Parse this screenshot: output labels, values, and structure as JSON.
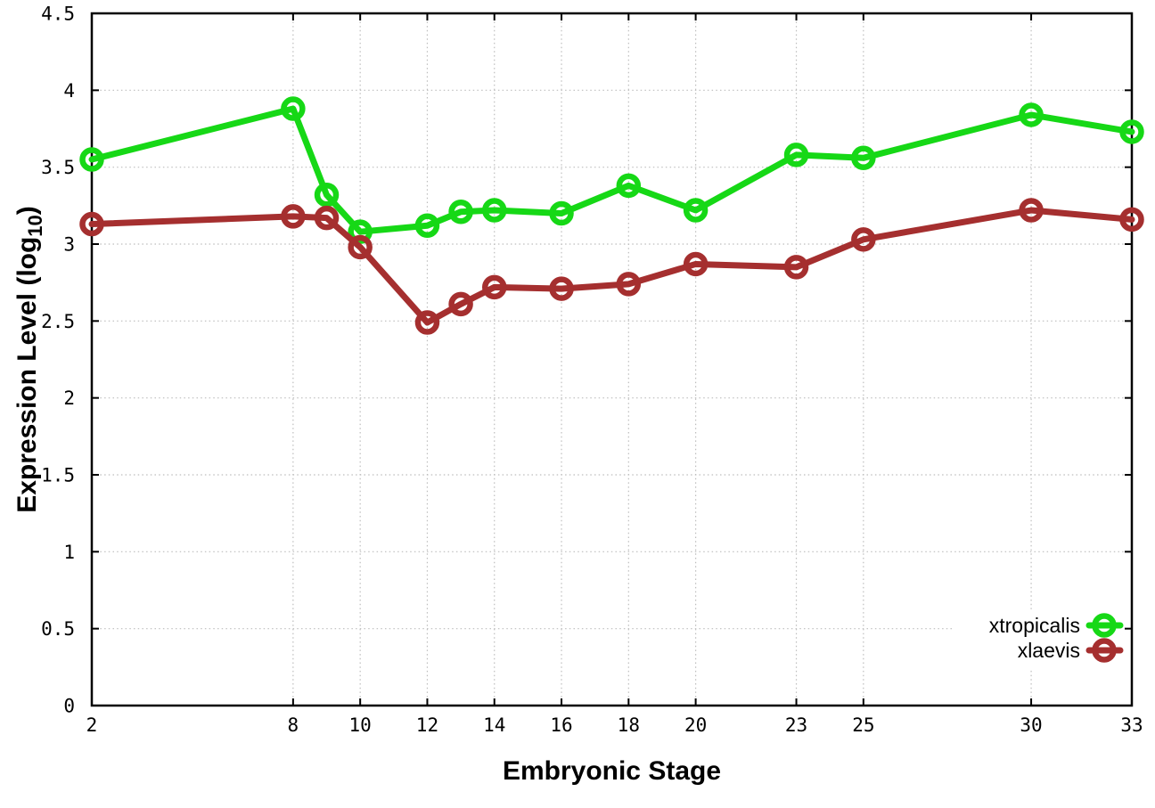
{
  "chart_data": {
    "type": "line",
    "title": "",
    "xlabel": "Embryonic Stage",
    "ylabel": {
      "prefix": "Expression Level (log",
      "subscript": "10",
      "suffix": ")"
    },
    "xlim": [
      2,
      33
    ],
    "ylim": [
      0,
      4.5
    ],
    "grid": true,
    "x_ticks": [
      2,
      8,
      10,
      12,
      14,
      16,
      18,
      20,
      23,
      25,
      30,
      33
    ],
    "x_tick_labels": [
      "2",
      "8",
      "10",
      "12",
      "14",
      "16",
      "18",
      "20",
      "23",
      "25",
      "30",
      "33"
    ],
    "y_ticks": [
      0,
      0.5,
      1,
      1.5,
      2,
      2.5,
      3,
      3.5,
      4,
      4.5
    ],
    "y_tick_labels": [
      "0",
      "0.5",
      "1",
      "1.5",
      "2",
      "2.5",
      "3",
      "3.5",
      "4",
      "4.5"
    ],
    "x": [
      2,
      8,
      9,
      10,
      12,
      13,
      14,
      16,
      18,
      20,
      23,
      25,
      30,
      33
    ],
    "series": [
      {
        "name": "xtropicalis",
        "color": "#16d816",
        "marker": "open-circle",
        "values": [
          3.55,
          3.88,
          3.32,
          3.08,
          3.12,
          3.21,
          3.22,
          3.2,
          3.38,
          3.22,
          3.58,
          3.56,
          3.84,
          3.73
        ]
      },
      {
        "name": "xlaevis",
        "color": "#a52f2f",
        "marker": "open-circle",
        "values": [
          3.13,
          3.18,
          3.17,
          2.98,
          2.49,
          2.61,
          2.72,
          2.71,
          2.74,
          2.87,
          2.85,
          3.03,
          3.22,
          3.16
        ]
      }
    ],
    "legend": {
      "position": "bottom-right",
      "entries": [
        "xtropicalis",
        "xlaevis"
      ]
    },
    "colors": {
      "background": "#ffffff",
      "axis": "#000000",
      "grid": "#bdbdbd",
      "text": "#000000"
    }
  }
}
